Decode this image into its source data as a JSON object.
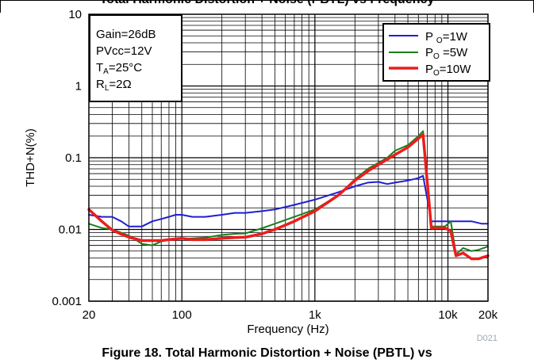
{
  "header": {
    "title": "THD+N vs Frequency (PBTL) — Figure 18",
    "title_top_visible": "Total Harmonic Distortion + Noise (PBTL) vs Frequency",
    "caption": "Figure 18. Total Harmonic Distortion + Noise (PBTL) vs"
  },
  "chart_data": {
    "type": "line",
    "title": "",
    "xlabel": "Frequency (Hz)",
    "ylabel": "THD+N(%)",
    "x_scale": "log",
    "y_scale": "log",
    "xlim": [
      20,
      20000
    ],
    "ylim": [
      0.001,
      10
    ],
    "grid": true,
    "x_tick_labels": [
      {
        "value": 20,
        "label": "20"
      },
      {
        "value": 100,
        "label": "100"
      },
      {
        "value": 1000,
        "label": "1k"
      },
      {
        "value": 10000,
        "label": "10k"
      },
      {
        "value": 20000,
        "label": "20k"
      }
    ],
    "y_tick_labels": [
      {
        "value": 0.001,
        "label": "0.001"
      },
      {
        "value": 0.01,
        "label": "0.01"
      },
      {
        "value": 0.1,
        "label": "0.1"
      },
      {
        "value": 1,
        "label": "1"
      },
      {
        "value": 10,
        "label": "10"
      }
    ],
    "conditions_box": {
      "line1": "Gain=26dB",
      "line2": "PVcc=12V",
      "line3_main": "T",
      "line3_sub": "A",
      "line3_rest": "=25°C",
      "line4_main": "R",
      "line4_sub": "L",
      "line4_rest": "=2Ω"
    },
    "watermark": "D021",
    "legend_position": "top-right",
    "series": [
      {
        "name": "P O=1W",
        "legend_main": "P ",
        "legend_sub": "O",
        "legend_rest": "=1W",
        "color": "#1f1fd2",
        "width": 2,
        "x": [
          20,
          25,
          30,
          35,
          40,
          45,
          50,
          60,
          70,
          80,
          90,
          100,
          120,
          150,
          200,
          250,
          300,
          400,
          500,
          700,
          1000,
          1500,
          2000,
          2500,
          3000,
          3500,
          4000,
          5000,
          6000,
          6500,
          7500,
          8500,
          10000,
          12000,
          15000,
          18000,
          20000
        ],
        "y": [
          0.016,
          0.015,
          0.015,
          0.013,
          0.011,
          0.011,
          0.011,
          0.013,
          0.014,
          0.015,
          0.016,
          0.016,
          0.015,
          0.015,
          0.016,
          0.017,
          0.017,
          0.018,
          0.019,
          0.022,
          0.026,
          0.033,
          0.04,
          0.045,
          0.046,
          0.043,
          0.045,
          0.048,
          0.052,
          0.056,
          0.013,
          0.013,
          0.013,
          0.013,
          0.013,
          0.012,
          0.012
        ]
      },
      {
        "name": "PO =5W",
        "legend_main": "P",
        "legend_sub": "O",
        "legend_rest": " =5W",
        "color": "#1a7f1a",
        "width": 2,
        "x": [
          20,
          25,
          30,
          35,
          40,
          45,
          50,
          60,
          70,
          80,
          100,
          120,
          150,
          200,
          250,
          300,
          400,
          500,
          700,
          1000,
          1500,
          2000,
          2500,
          3000,
          3500,
          4000,
          5000,
          6000,
          6500,
          7500,
          8500,
          9500,
          10500,
          11500,
          13000,
          15000,
          17000,
          20000
        ],
        "y": [
          0.012,
          0.0105,
          0.01,
          0.009,
          0.0082,
          0.0072,
          0.0063,
          0.006,
          0.0068,
          0.0073,
          0.0074,
          0.0075,
          0.0077,
          0.0084,
          0.0087,
          0.0088,
          0.0104,
          0.012,
          0.015,
          0.019,
          0.03,
          0.05,
          0.07,
          0.085,
          0.1,
          0.125,
          0.15,
          0.2,
          0.235,
          0.011,
          0.011,
          0.011,
          0.013,
          0.0045,
          0.0055,
          0.005,
          0.0052,
          0.0058
        ]
      },
      {
        "name": "PO=10W",
        "legend_main": "P",
        "legend_sub": "O",
        "legend_rest": "=10W",
        "color": "#ee1c1c",
        "width": 3.5,
        "x": [
          20,
          25,
          30,
          35,
          40,
          50,
          60,
          70,
          80,
          100,
          120,
          150,
          200,
          250,
          300,
          400,
          500,
          700,
          1000,
          1500,
          2000,
          2500,
          3000,
          3500,
          4000,
          5000,
          6000,
          6500,
          7500,
          8500,
          9500,
          10500,
          11500,
          13000,
          15000,
          17000,
          20000
        ],
        "y": [
          0.019,
          0.013,
          0.0098,
          0.0086,
          0.0078,
          0.007,
          0.007,
          0.007,
          0.0072,
          0.0075,
          0.0072,
          0.0072,
          0.0075,
          0.0077,
          0.0078,
          0.0087,
          0.01,
          0.013,
          0.018,
          0.03,
          0.048,
          0.065,
          0.08,
          0.095,
          0.11,
          0.14,
          0.185,
          0.21,
          0.0105,
          0.0105,
          0.0105,
          0.0095,
          0.0043,
          0.0047,
          0.0039,
          0.0039,
          0.0043
        ]
      }
    ]
  }
}
